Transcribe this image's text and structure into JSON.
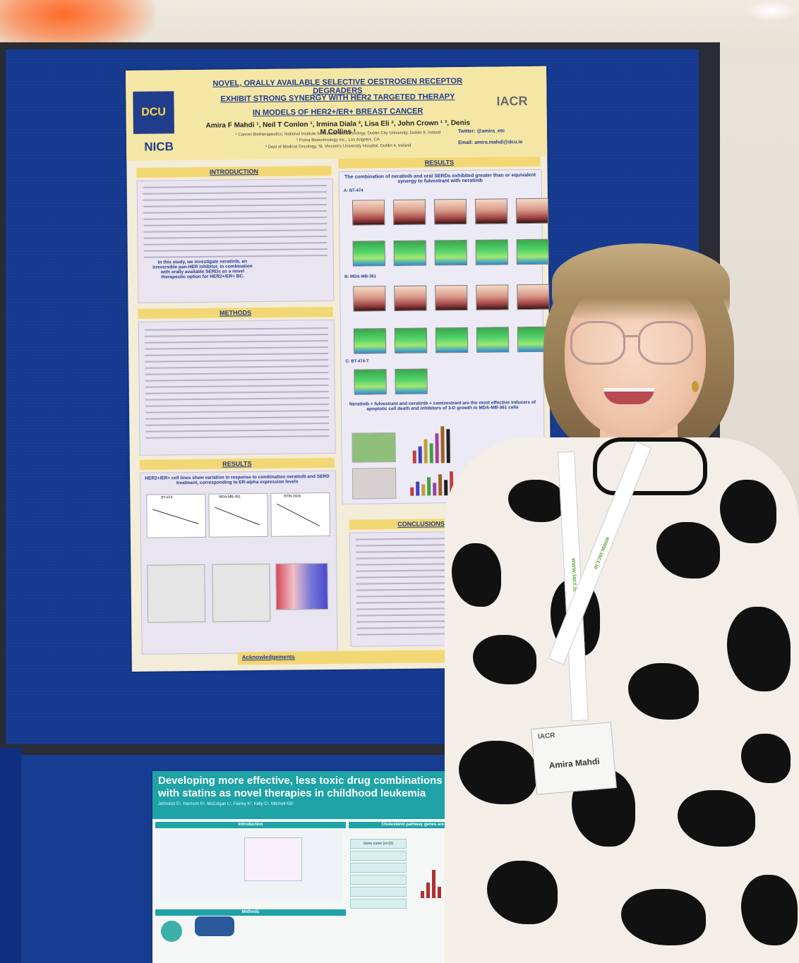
{
  "poster_main": {
    "logo_left": "DCU",
    "logo_nicb": "NICB",
    "logo_right": "IACR",
    "title_lines": [
      "NOVEL, ORALLY AVAILABLE SELECTIVE OESTROGEN RECEPTOR DEGRADERS",
      "EXHIBIT STRONG SYNERGY WITH HER2 TARGETED THERAPY",
      "IN MODELS OF HER2+/ER+ BREAST CANCER"
    ],
    "authors": "Amira F Mahdi ¹, Neil T Conlon ¹, Irmina Diala ², Lisa Eli ², John Crown ¹ ³, Denis M Collins ¹",
    "affiliations": [
      "¹ Cancer Biotherapeutics, National Institute for Cellular Biotechnology, Dublin City University, Dublin 9, Ireland",
      "² Puma Biotechnology Inc., Los Angeles, CA",
      "³ Dept of Medical Oncology, St. Vincent's University Hospital, Dublin 4, Ireland"
    ],
    "twitter": "Twitter: @amira_etc",
    "email": "Email: amira.mahdi@dcu.ie",
    "sections": {
      "introduction": "INTRODUCTION",
      "methods": "METHODS",
      "results_left": "RESULTS",
      "results_right": "RESULTS",
      "conclusions": "CONCLUSIONS & FUTURE WOR"
    },
    "intro_study": "In this study, we investigate neratinib, an irreversible pan-HER inhibitor, in combination with orally available SERDs as a novel therapeutic option for HER2+/ER+ BC.",
    "results_left_heading": "HER2+/ER+ cell lines show variation in response to combination neratinib and SERD treatment, corresponding to ER-alpha expression levels",
    "results_right_heading": "The combination of neratinib and oral SERDs exhibited greater than or equivalent synergy to fulvestrant with neratinib",
    "panel_labels": [
      "A: BT-474",
      "B: MDA-MB-361",
      "C: BT-474-T"
    ],
    "results_right_heading2": "Neratinib + fulvestrant and neratinib + camizestrant are the most effective inducers of apoptotic cell death and inhibitors of 3-D growth in MDA-MB-361 cells",
    "cell_lines": [
      "BT-474",
      "MDA-MB-361",
      "EFM-192A"
    ],
    "acknowledgements": "Acknowledgements"
  },
  "poster_second": {
    "title_line1": "Developing more effective, less toxic drug combinations",
    "title_line2": "with statins as novel therapies in childhood leukemia",
    "authors": "Johnston E¹, Harrison R¹, McColgan L¹, Fairley K¹, Kelly C¹, Mitchell KB¹",
    "section_intro": "Introduction",
    "section_genes": "Cholesterol pathway genes are si",
    "section_methods": "Methods",
    "gene_table_header": "Gene name (n=10)"
  },
  "badge": {
    "org": "IACR",
    "name": "Amira Mahdi"
  },
  "lanyard_text": "www.iacr.ie",
  "colors": {
    "board_blue": "#14398f",
    "poster_gold": "#f2d774",
    "poster_teal": "#1fa3a7"
  }
}
